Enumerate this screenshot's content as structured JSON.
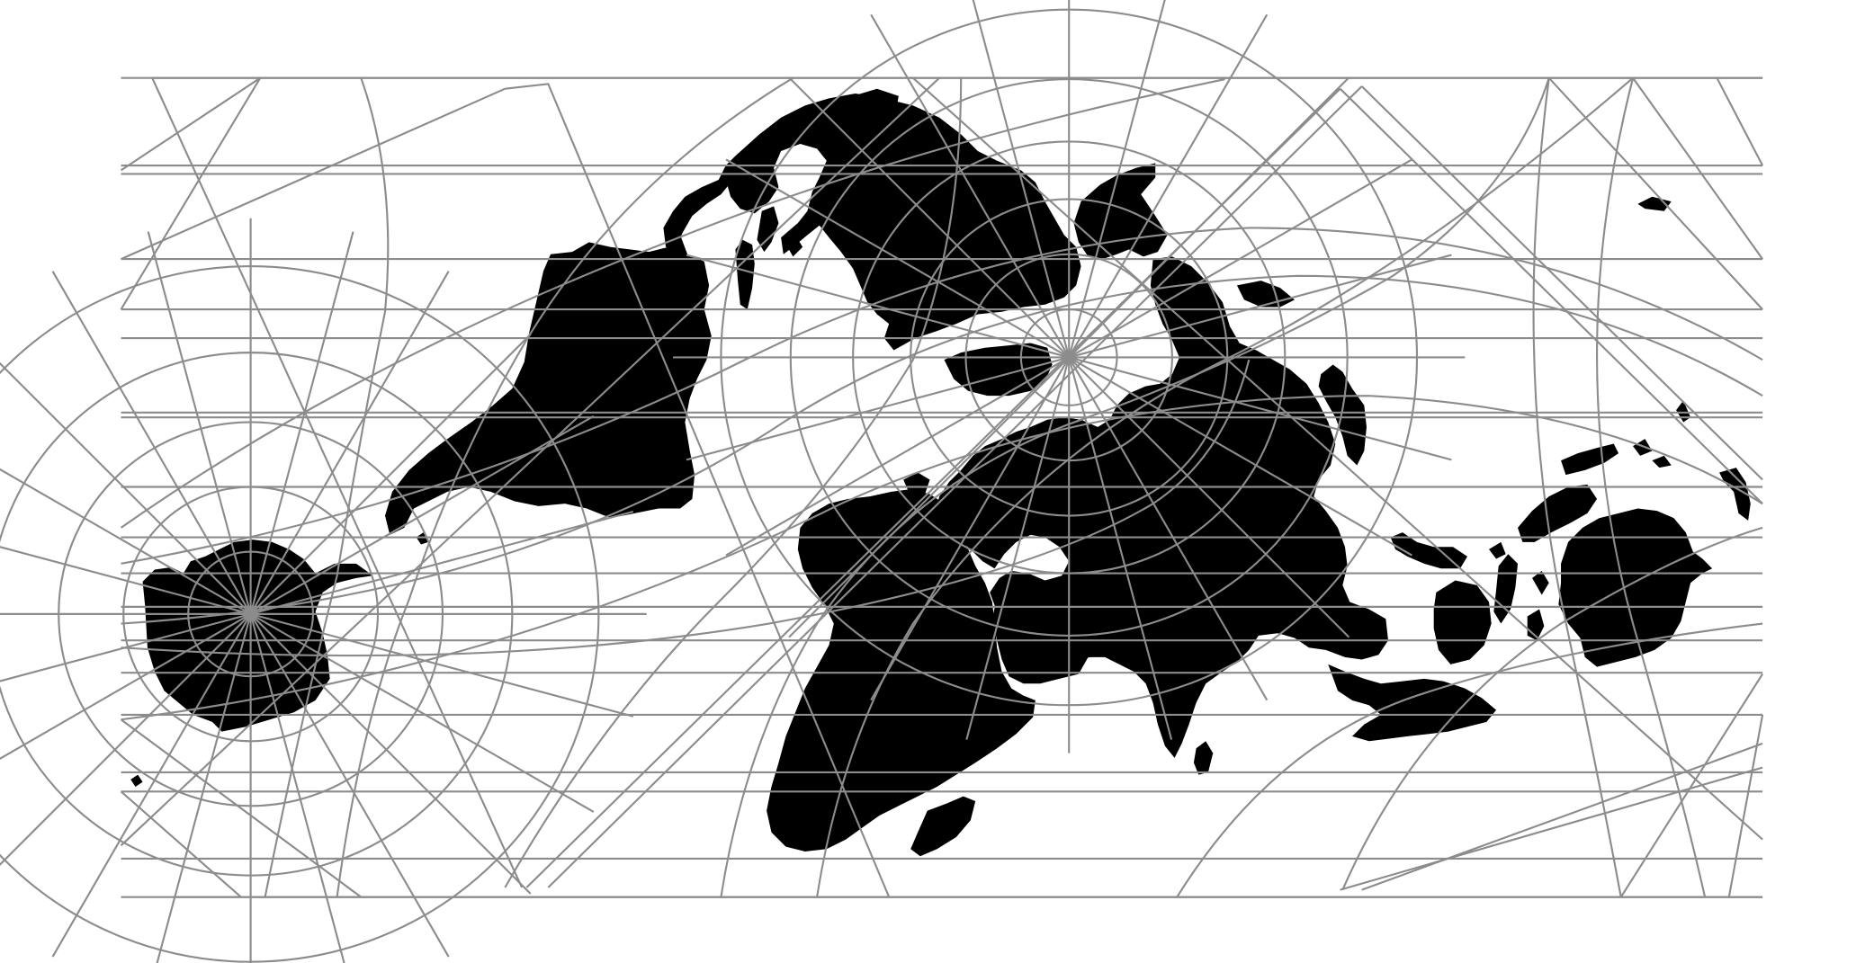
{
  "map": {
    "projection": "oblique-rectangular-graticule",
    "background_color": "#ffffff",
    "land_color": "#000000",
    "graticule_color": "#8c8c8c",
    "labels": [],
    "graticule": {
      "visible": true,
      "poles_visible": 2,
      "meridian_spokes_per_pole": 24
    }
  }
}
